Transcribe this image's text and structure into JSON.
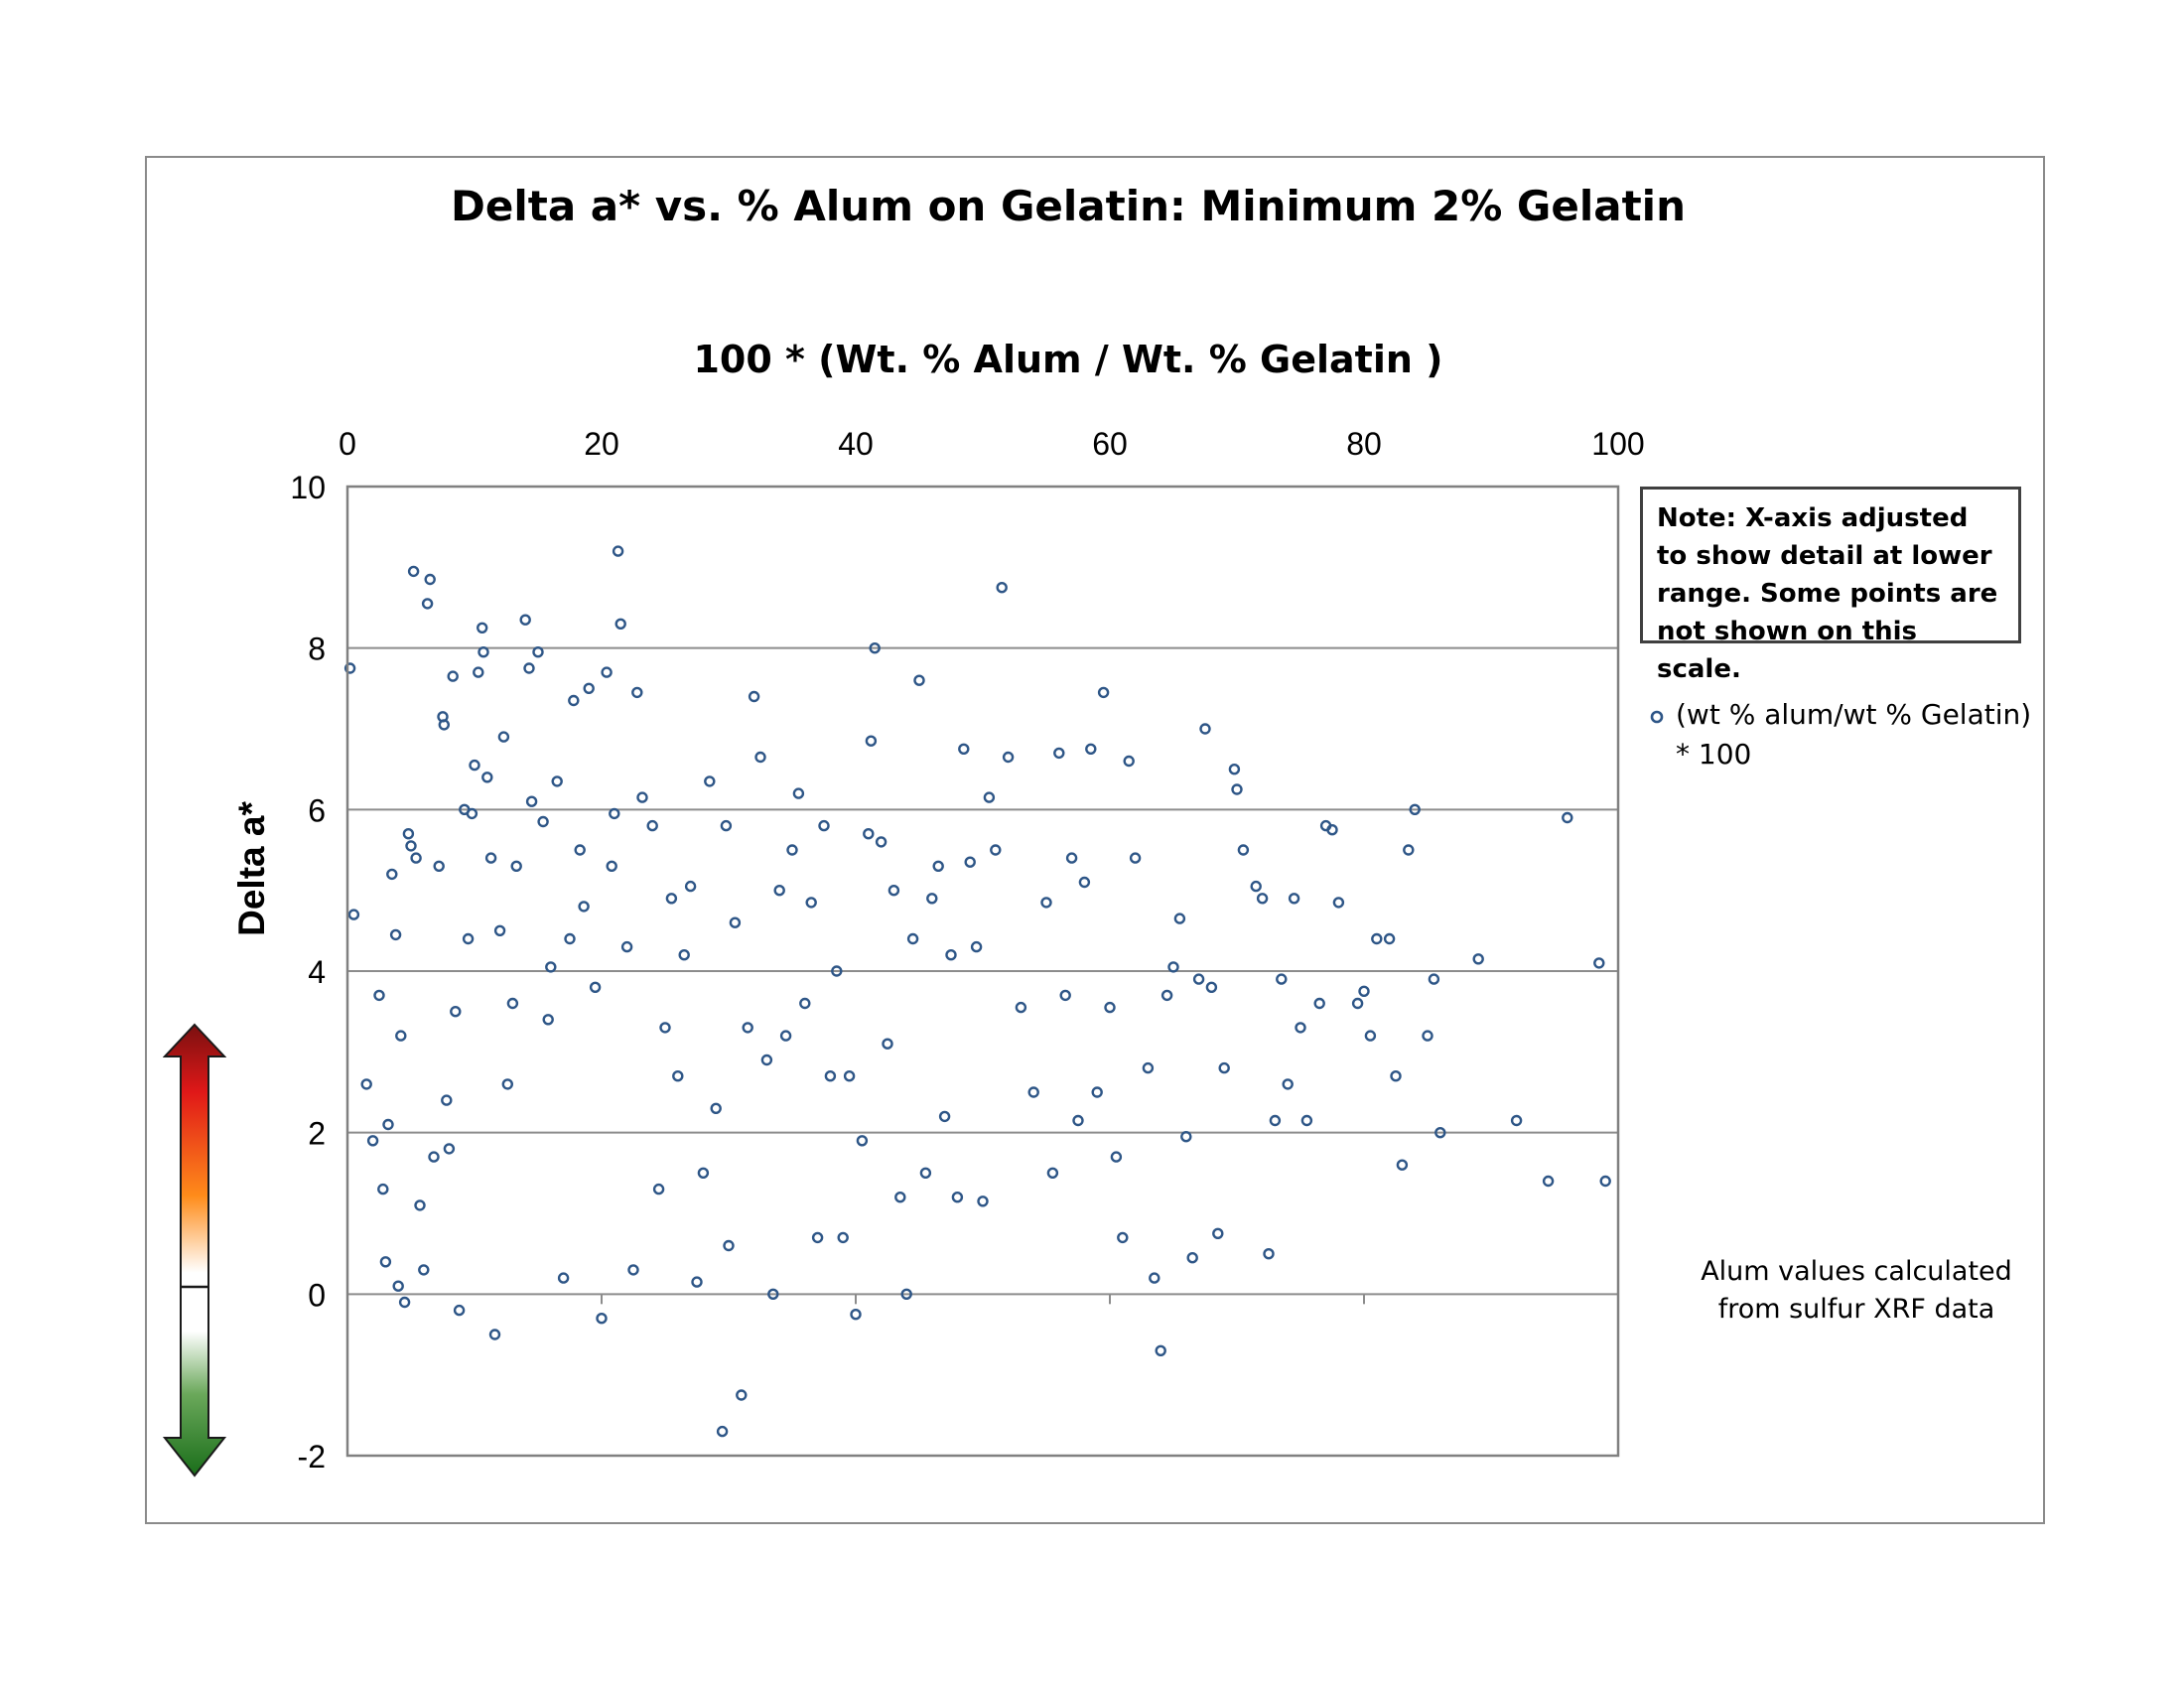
{
  "chart_data": {
    "type": "scatter",
    "title": "Delta a* vs. %  Alum on Gelatin:  Minimum 2% Gelatin",
    "xlabel": "100 * (Wt. % Alum / Wt. % Gelatin )",
    "ylabel": "Delta  a*",
    "xlim": [
      0,
      100
    ],
    "ylim": [
      -2,
      10
    ],
    "x_ticks": [
      "0",
      "20",
      "40",
      "60",
      "80",
      "100"
    ],
    "y_ticks": [
      "-2",
      "0",
      "2",
      "4",
      "6",
      "8",
      "10"
    ],
    "x_axis_position": "top",
    "grid": "horizontal",
    "legend_placement": "right",
    "marker_color": "#2e5687",
    "series": [
      {
        "name": "(wt % alum/wt % Gelatin) * 100",
        "points": [
          [
            0.2,
            7.75
          ],
          [
            0.5,
            4.7
          ],
          [
            1.5,
            2.6
          ],
          [
            2,
            1.9
          ],
          [
            2.5,
            3.7
          ],
          [
            2.8,
            1.3
          ],
          [
            3,
            0.4
          ],
          [
            3.2,
            2.1
          ],
          [
            3.5,
            5.2
          ],
          [
            3.8,
            4.45
          ],
          [
            4,
            0.1
          ],
          [
            4.2,
            3.2
          ],
          [
            4.5,
            -0.1
          ],
          [
            4.8,
            5.7
          ],
          [
            5,
            5.55
          ],
          [
            5.2,
            8.95
          ],
          [
            5.4,
            5.4
          ],
          [
            5.7,
            1.1
          ],
          [
            6,
            0.3
          ],
          [
            6.3,
            8.55
          ],
          [
            6.5,
            8.85
          ],
          [
            6.8,
            1.7
          ],
          [
            7.2,
            5.3
          ],
          [
            7.5,
            7.15
          ],
          [
            7.6,
            7.05
          ],
          [
            7.8,
            2.4
          ],
          [
            8,
            1.8
          ],
          [
            8.3,
            7.65
          ],
          [
            8.5,
            3.5
          ],
          [
            8.8,
            -0.2
          ],
          [
            9.2,
            6
          ],
          [
            9.5,
            4.4
          ],
          [
            9.8,
            5.95
          ],
          [
            10,
            6.55
          ],
          [
            10.3,
            7.7
          ],
          [
            10.6,
            8.25
          ],
          [
            10.7,
            7.95
          ],
          [
            11,
            6.4
          ],
          [
            11.3,
            5.4
          ],
          [
            11.6,
            -0.5
          ],
          [
            12,
            4.5
          ],
          [
            12.3,
            6.9
          ],
          [
            12.6,
            2.6
          ],
          [
            13,
            3.6
          ],
          [
            13.3,
            5.3
          ],
          [
            14,
            8.35
          ],
          [
            14.3,
            7.75
          ],
          [
            14.5,
            6.1
          ],
          [
            15,
            7.95
          ],
          [
            15.4,
            5.85
          ],
          [
            15.8,
            3.4
          ],
          [
            16,
            4.05
          ],
          [
            16.5,
            6.35
          ],
          [
            17,
            0.2
          ],
          [
            17.5,
            4.4
          ],
          [
            17.8,
            7.35
          ],
          [
            18.3,
            5.5
          ],
          [
            18.6,
            4.8
          ],
          [
            19,
            7.5
          ],
          [
            19.5,
            3.8
          ],
          [
            20,
            -0.3
          ],
          [
            20.4,
            7.7
          ],
          [
            20.8,
            5.3
          ],
          [
            21,
            5.95
          ],
          [
            21.3,
            9.2
          ],
          [
            21.5,
            8.3
          ],
          [
            22,
            4.3
          ],
          [
            22.5,
            0.3
          ],
          [
            22.8,
            7.45
          ],
          [
            23.2,
            6.15
          ],
          [
            24,
            5.8
          ],
          [
            24.5,
            1.3
          ],
          [
            25,
            3.3
          ],
          [
            25.5,
            4.9
          ],
          [
            26,
            2.7
          ],
          [
            26.5,
            4.2
          ],
          [
            27,
            5.05
          ],
          [
            27.5,
            0.15
          ],
          [
            28,
            1.5
          ],
          [
            28.5,
            6.35
          ],
          [
            29,
            2.3
          ],
          [
            29.5,
            -1.7
          ],
          [
            29.8,
            5.8
          ],
          [
            30,
            0.6
          ],
          [
            30.5,
            4.6
          ],
          [
            31,
            -1.25
          ],
          [
            31.5,
            3.3
          ],
          [
            32,
            7.4
          ],
          [
            32.5,
            6.65
          ],
          [
            33,
            2.9
          ],
          [
            33.5,
            0
          ],
          [
            34,
            5
          ],
          [
            34.5,
            3.2
          ],
          [
            35,
            5.5
          ],
          [
            35.5,
            6.2
          ],
          [
            36,
            3.6
          ],
          [
            36.5,
            4.85
          ],
          [
            37,
            0.7
          ],
          [
            37.5,
            5.8
          ],
          [
            38,
            2.7
          ],
          [
            38.5,
            4
          ],
          [
            39,
            0.7
          ],
          [
            39.5,
            2.7
          ],
          [
            40,
            -0.25
          ],
          [
            40.5,
            1.9
          ],
          [
            41,
            5.7
          ],
          [
            41.2,
            6.85
          ],
          [
            41.5,
            8
          ],
          [
            42,
            5.6
          ],
          [
            42.5,
            3.1
          ],
          [
            43,
            5
          ],
          [
            43.5,
            1.2
          ],
          [
            44,
            0
          ],
          [
            44.5,
            4.4
          ],
          [
            45,
            7.6
          ],
          [
            45.5,
            1.5
          ],
          [
            46,
            4.9
          ],
          [
            46.5,
            5.3
          ],
          [
            47,
            2.2
          ],
          [
            47.5,
            4.2
          ],
          [
            48,
            1.2
          ],
          [
            48.5,
            6.75
          ],
          [
            49,
            5.35
          ],
          [
            49.5,
            4.3
          ],
          [
            50,
            1.15
          ],
          [
            50.5,
            6.15
          ],
          [
            51,
            5.5
          ],
          [
            51.5,
            8.75
          ],
          [
            52,
            6.65
          ],
          [
            53,
            3.55
          ],
          [
            54,
            2.5
          ],
          [
            55,
            4.85
          ],
          [
            55.5,
            1.5
          ],
          [
            56,
            6.7
          ],
          [
            56.5,
            3.7
          ],
          [
            57,
            5.4
          ],
          [
            57.5,
            2.15
          ],
          [
            58,
            5.1
          ],
          [
            58.5,
            6.75
          ],
          [
            59,
            2.5
          ],
          [
            59.5,
            7.45
          ],
          [
            60,
            3.55
          ],
          [
            60.5,
            1.7
          ],
          [
            61,
            0.7
          ],
          [
            61.5,
            6.6
          ],
          [
            62,
            5.4
          ],
          [
            63,
            2.8
          ],
          [
            63.5,
            0.2
          ],
          [
            64,
            -0.7
          ],
          [
            64.5,
            3.7
          ],
          [
            65,
            4.05
          ],
          [
            65.5,
            4.65
          ],
          [
            66,
            1.95
          ],
          [
            66.5,
            0.45
          ],
          [
            67,
            3.9
          ],
          [
            67.5,
            7
          ],
          [
            68,
            3.8
          ],
          [
            68.5,
            0.75
          ],
          [
            69,
            2.8
          ],
          [
            69.8,
            6.5
          ],
          [
            70,
            6.25
          ],
          [
            70.5,
            5.5
          ],
          [
            71.5,
            5.05
          ],
          [
            72,
            4.9
          ],
          [
            72.5,
            0.5
          ],
          [
            73,
            2.15
          ],
          [
            73.5,
            3.9
          ],
          [
            74,
            2.6
          ],
          [
            74.5,
            4.9
          ],
          [
            75,
            3.3
          ],
          [
            75.5,
            2.15
          ],
          [
            76.5,
            3.6
          ],
          [
            77,
            5.8
          ],
          [
            77.5,
            5.75
          ],
          [
            78,
            4.85
          ],
          [
            79.5,
            3.6
          ],
          [
            80,
            3.75
          ],
          [
            80.5,
            3.2
          ],
          [
            81,
            4.4
          ],
          [
            82,
            4.4
          ],
          [
            82.5,
            2.7
          ],
          [
            83,
            1.6
          ],
          [
            83.5,
            5.5
          ],
          [
            84,
            6
          ],
          [
            85,
            3.2
          ],
          [
            85.5,
            3.9
          ],
          [
            86,
            2
          ],
          [
            89,
            4.15
          ],
          [
            92,
            2.15
          ],
          [
            94.5,
            1.4
          ],
          [
            96,
            5.9
          ],
          [
            98.5,
            4.1
          ],
          [
            99,
            1.4
          ]
        ]
      }
    ],
    "note": "Note:   X-axis adjusted to show detail at lower range.   Some points are not shown on this scale.",
    "footnote_lines": [
      "Alum values calculated",
      "from sulfur XRF data"
    ],
    "colorbar_colors": [
      "#7a1010",
      "#e01818",
      "#ff8c1a",
      "#ffffff",
      "#ffffff",
      "#6aa85a",
      "#1a6e1a"
    ]
  }
}
